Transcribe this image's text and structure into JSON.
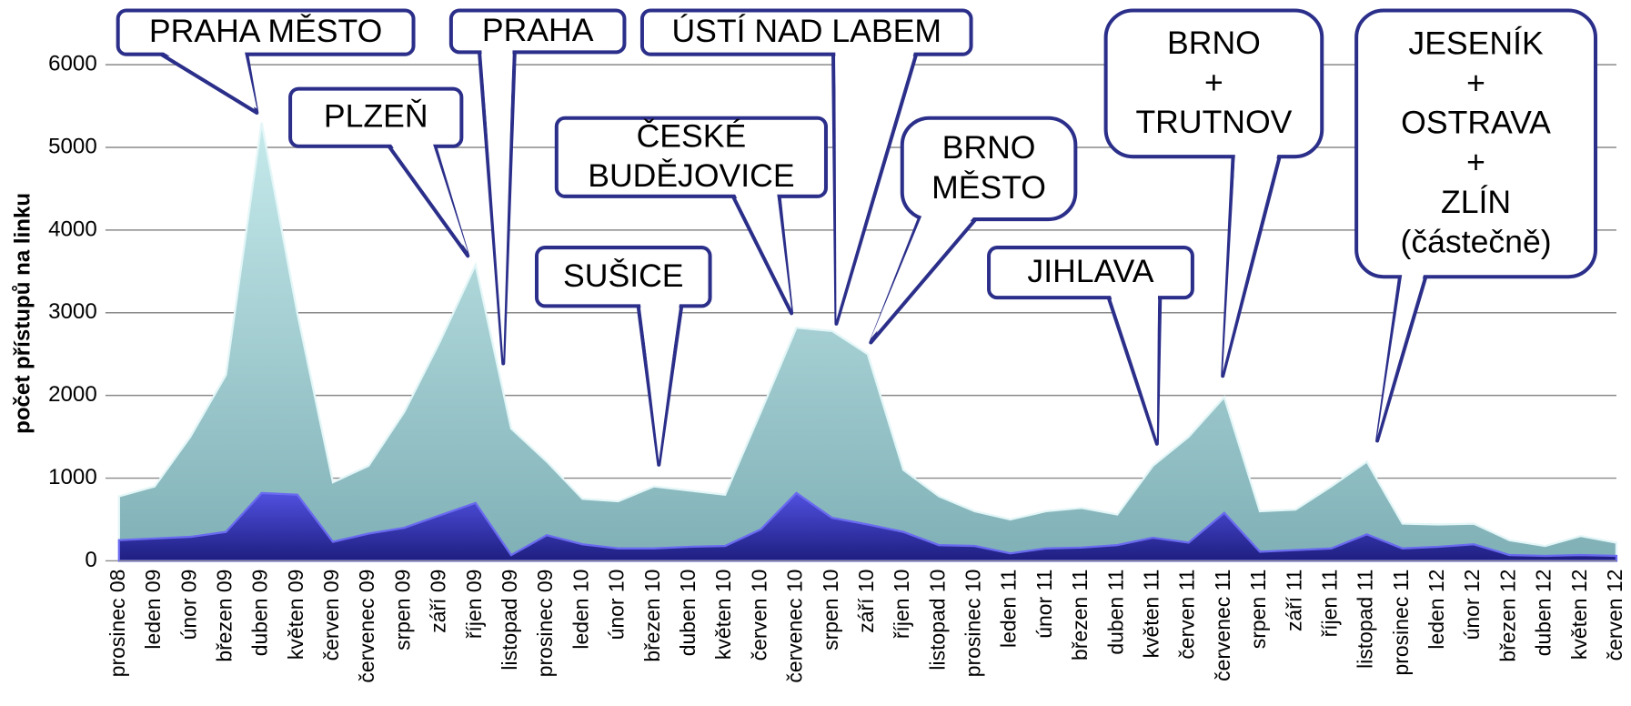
{
  "chart_data": {
    "type": "area",
    "y_label": "počet přístupů na linku",
    "categories": [
      "prosinec 08",
      "leden 09",
      "únor 09",
      "březen 09",
      "duben 09",
      "květen 09",
      "červen 09",
      "červenec 09",
      "srpen 09",
      "září 09",
      "říjen 09",
      "listopad 09",
      "prosinec 09",
      "leden 10",
      "únor 10",
      "březen 10",
      "duben 10",
      "květen 10",
      "červen 10",
      "červenec 10",
      "srpen 10",
      "září 10",
      "říjen 10",
      "listopad 10",
      "prosinec 10",
      "leden 11",
      "únor 11",
      "březen 11",
      "duben 11",
      "květen 11",
      "červen 11",
      "červenec 11",
      "srpen 11",
      "září 11",
      "říjen 11",
      "listopad 11",
      "prosinec 11",
      "leden 12",
      "únor 12",
      "březen 12",
      "duben 12",
      "květen 12",
      "červen 12"
    ],
    "series": [
      {
        "color": "#9fd0d4",
        "values": [
          780,
          900,
          1500,
          2250,
          5300,
          3000,
          950,
          1150,
          1800,
          2650,
          3580,
          1600,
          1200,
          750,
          720,
          900,
          850,
          800,
          1800,
          2820,
          2780,
          2500,
          1100,
          780,
          600,
          500,
          600,
          640,
          560,
          1150,
          1500,
          1980,
          600,
          620,
          900,
          1200,
          450,
          440,
          450,
          250,
          180,
          300,
          220
        ]
      },
      {
        "color": "#2b2ba6",
        "values": [
          250,
          270,
          290,
          350,
          820,
          800,
          230,
          330,
          400,
          550,
          700,
          70,
          310,
          200,
          150,
          150,
          170,
          180,
          380,
          820,
          520,
          440,
          350,
          190,
          180,
          90,
          150,
          160,
          190,
          280,
          220,
          580,
          110,
          130,
          150,
          320,
          150,
          170,
          200,
          70,
          60,
          70,
          60
        ]
      }
    ],
    "ylim": [
      0,
      6000
    ],
    "yticks": [
      0,
      1000,
      2000,
      3000,
      4000,
      5000,
      6000
    ],
    "grid": true,
    "annotations": [
      [
        "PRAHA MĚSTO"
      ],
      [
        "PLZEŇ"
      ],
      [
        "PRAHA"
      ],
      [
        "ÚSTÍ NAD LABEM"
      ],
      [
        "ČESKÉ",
        "BUDĚJOVICE"
      ],
      [
        "SUŠICE"
      ],
      [
        "BRNO",
        "MĚSTO"
      ],
      [
        "JIHLAVA"
      ],
      [
        "BRNO",
        "+",
        "TRUTNOV"
      ],
      [
        "JESENÍK",
        "+",
        "OSTRAVA",
        "+",
        "ZLÍN",
        "(částečně)"
      ]
    ]
  }
}
